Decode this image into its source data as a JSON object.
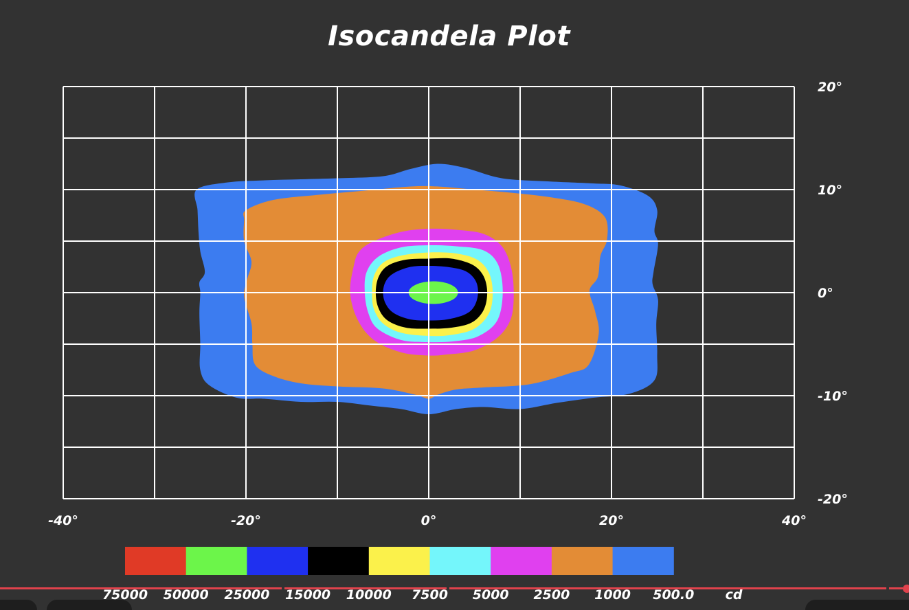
{
  "chart_data": {
    "type": "heatmap",
    "title": "Isocandela Plot",
    "xlim": [
      -40,
      40
    ],
    "ylim": [
      -20,
      20
    ],
    "grid": true,
    "x_ticks": [
      {
        "value": -40,
        "label": "-40°"
      },
      {
        "value": -20,
        "label": "-20°"
      },
      {
        "value": 0,
        "label": "0°"
      },
      {
        "value": 20,
        "label": "20°"
      },
      {
        "value": 40,
        "label": "40°"
      }
    ],
    "y_ticks": [
      {
        "value": 20,
        "label": "20°"
      },
      {
        "value": 10,
        "label": "10°"
      },
      {
        "value": 0,
        "label": "0°"
      },
      {
        "value": -10,
        "label": "-10°"
      },
      {
        "value": -20,
        "label": "-20°"
      }
    ],
    "x_gridlines": [
      -40,
      -30,
      -20,
      -10,
      0,
      10,
      20,
      30,
      40
    ],
    "y_gridlines": [
      20,
      15,
      10,
      5,
      0,
      -5,
      -10,
      -15,
      -20
    ],
    "legend": {
      "unit": "cd",
      "levels": [
        {
          "label": "75000",
          "color": "#e03a26"
        },
        {
          "label": "50000",
          "color": "#6cf54a"
        },
        {
          "label": "25000",
          "color": "#1f30f0"
        },
        {
          "label": "15000",
          "color": "#000000"
        },
        {
          "label": "10000",
          "color": "#fbf14b"
        },
        {
          "label": "7500",
          "color": "#74f6fb"
        },
        {
          "label": "5000",
          "color": "#e040ef"
        },
        {
          "label": "2500",
          "color": "#e38c36"
        },
        {
          "label": "1000",
          "color": "#3c7cf0"
        },
        {
          "label": "500.0",
          "color": ""
        }
      ]
    },
    "contours": [
      {
        "level": "1000",
        "color": "#3c7cf0",
        "points": [
          [
            -25.4,
            10
          ],
          [
            -22,
            10.7
          ],
          [
            -18,
            10.9
          ],
          [
            -14,
            11
          ],
          [
            -10,
            11.1
          ],
          [
            -5,
            11.3
          ],
          [
            -2,
            12
          ],
          [
            1,
            12.5
          ],
          [
            4,
            12.1
          ],
          [
            8,
            11.1
          ],
          [
            13,
            10.8
          ],
          [
            18,
            10.6
          ],
          [
            21,
            10.4
          ],
          [
            24,
            9.4
          ],
          [
            25,
            8
          ],
          [
            24.7,
            6
          ],
          [
            25.1,
            4.7
          ],
          [
            24.6,
            2
          ],
          [
            24.5,
            0.8
          ],
          [
            25.1,
            -0.7
          ],
          [
            24.9,
            -3
          ],
          [
            25,
            -6
          ],
          [
            24.7,
            -8.5
          ],
          [
            22,
            -9.8
          ],
          [
            18,
            -10.2
          ],
          [
            14,
            -10.7
          ],
          [
            10,
            -11.3
          ],
          [
            6,
            -11.1
          ],
          [
            3,
            -11.3
          ],
          [
            0,
            -11.8
          ],
          [
            -3,
            -11.3
          ],
          [
            -6,
            -11
          ],
          [
            -10,
            -10.6
          ],
          [
            -14,
            -10.6
          ],
          [
            -18,
            -10.3
          ],
          [
            -21,
            -10.2
          ],
          [
            -24,
            -9
          ],
          [
            -25,
            -7.5
          ],
          [
            -25,
            -5
          ],
          [
            -25.1,
            -2
          ],
          [
            -25,
            0
          ],
          [
            -25.1,
            1
          ],
          [
            -24.5,
            2
          ],
          [
            -25,
            4
          ],
          [
            -25.2,
            6
          ],
          [
            -25.3,
            8
          ]
        ]
      },
      {
        "level": "2500",
        "color": "#e38c36",
        "points": [
          [
            -20,
            8
          ],
          [
            -17,
            9
          ],
          [
            -12,
            9.5
          ],
          [
            -7,
            9.9
          ],
          [
            -2,
            10.3
          ],
          [
            1,
            10.3
          ],
          [
            5,
            10
          ],
          [
            9,
            9.7
          ],
          [
            13,
            9.3
          ],
          [
            17,
            8.6
          ],
          [
            19.3,
            7.3
          ],
          [
            19.5,
            5.1
          ],
          [
            18.8,
            3.6
          ],
          [
            18.5,
            1.5
          ],
          [
            17.6,
            0.2
          ],
          [
            18.2,
            -1.8
          ],
          [
            18.6,
            -4
          ],
          [
            17.5,
            -7
          ],
          [
            15.5,
            -7.8
          ],
          [
            11,
            -8.9
          ],
          [
            6,
            -9.2
          ],
          [
            3,
            -9.4
          ],
          [
            1,
            -9.9
          ],
          [
            0,
            -10.3
          ],
          [
            -1.5,
            -9.9
          ],
          [
            -5,
            -9.3
          ],
          [
            -10,
            -9.1
          ],
          [
            -14,
            -8.8
          ],
          [
            -17,
            -8.1
          ],
          [
            -19,
            -7
          ],
          [
            -19.3,
            -5
          ],
          [
            -19.4,
            -3
          ],
          [
            -20.2,
            -0.4
          ],
          [
            -19.9,
            1.2
          ],
          [
            -19.4,
            3
          ],
          [
            -20.2,
            5
          ],
          [
            -20.2,
            7
          ]
        ]
      },
      {
        "level": "5000",
        "color": "#e040ef",
        "points": [
          [
            -6,
            5
          ],
          [
            -3,
            5.9
          ],
          [
            0,
            6.2
          ],
          [
            3,
            6.1
          ],
          [
            6,
            5.7
          ],
          [
            8,
            4.5
          ],
          [
            9,
            2.5
          ],
          [
            9.3,
            0
          ],
          [
            9,
            -2.5
          ],
          [
            7.6,
            -4.3
          ],
          [
            5,
            -5.6
          ],
          [
            2,
            -6
          ],
          [
            0,
            -6.1
          ],
          [
            -3,
            -5.8
          ],
          [
            -6,
            -4.6
          ],
          [
            -7.8,
            -2.6
          ],
          [
            -8.6,
            0
          ],
          [
            -8.2,
            2.6
          ],
          [
            -7.6,
            4
          ]
        ]
      },
      {
        "level": "7500",
        "color": "#74f6fb",
        "points": [
          [
            -5.5,
            3.5
          ],
          [
            -3,
            4.4
          ],
          [
            0,
            4.6
          ],
          [
            3,
            4.5
          ],
          [
            6,
            4.1
          ],
          [
            7.6,
            2.7
          ],
          [
            8.1,
            0
          ],
          [
            7.5,
            -2.7
          ],
          [
            5.5,
            -4.2
          ],
          [
            3,
            -4.7
          ],
          [
            0,
            -4.8
          ],
          [
            -3,
            -4.6
          ],
          [
            -5.6,
            -3.5
          ],
          [
            -6.6,
            -2
          ],
          [
            -7,
            0
          ],
          [
            -6.8,
            2
          ]
        ]
      },
      {
        "level": "10000",
        "color": "#fbf14b",
        "points": [
          [
            -5,
            2.9
          ],
          [
            -3,
            3.6
          ],
          [
            0,
            3.9
          ],
          [
            3,
            3.8
          ],
          [
            5.3,
            3.2
          ],
          [
            6.6,
            1.9
          ],
          [
            7,
            0
          ],
          [
            6.6,
            -2
          ],
          [
            5,
            -3.5
          ],
          [
            2.5,
            -4.1
          ],
          [
            0,
            -4.2
          ],
          [
            -3,
            -3.9
          ],
          [
            -5,
            -3
          ],
          [
            -6,
            -1.6
          ],
          [
            -6.2,
            0
          ],
          [
            -6,
            1.6
          ]
        ]
      },
      {
        "level": "15000",
        "color": "#000000",
        "points": [
          [
            -4.5,
            2.6
          ],
          [
            -2.5,
            3.2
          ],
          [
            0,
            3.3
          ],
          [
            2.5,
            3.3
          ],
          [
            4.8,
            2.7
          ],
          [
            6,
            1.6
          ],
          [
            6.4,
            0
          ],
          [
            6,
            -1.7
          ],
          [
            4.7,
            -2.9
          ],
          [
            2.5,
            -3.4
          ],
          [
            0,
            -3.5
          ],
          [
            -2.5,
            -3.4
          ],
          [
            -4.5,
            -2.7
          ],
          [
            -5.5,
            -1.5
          ],
          [
            -5.8,
            0
          ],
          [
            -5.5,
            1.5
          ]
        ]
      },
      {
        "level": "25000",
        "color": "#1f30f0",
        "points": [
          [
            -3.8,
            1.9
          ],
          [
            -2,
            2.5
          ],
          [
            0,
            2.6
          ],
          [
            2,
            2.5
          ],
          [
            4,
            2.1
          ],
          [
            5.1,
            1.2
          ],
          [
            5.4,
            0
          ],
          [
            5,
            -1.3
          ],
          [
            4,
            -2.1
          ],
          [
            2,
            -2.6
          ],
          [
            0,
            -2.7
          ],
          [
            -2,
            -2.6
          ],
          [
            -3.8,
            -2
          ],
          [
            -4.7,
            -1.1
          ],
          [
            -5,
            0
          ],
          [
            -4.7,
            1.1
          ]
        ]
      },
      {
        "level": "50000",
        "color": "#6cf54a",
        "ellipse": {
          "cx": 0.5,
          "cy": 0,
          "rx": 2.7,
          "ry": 1.1
        }
      }
    ]
  }
}
